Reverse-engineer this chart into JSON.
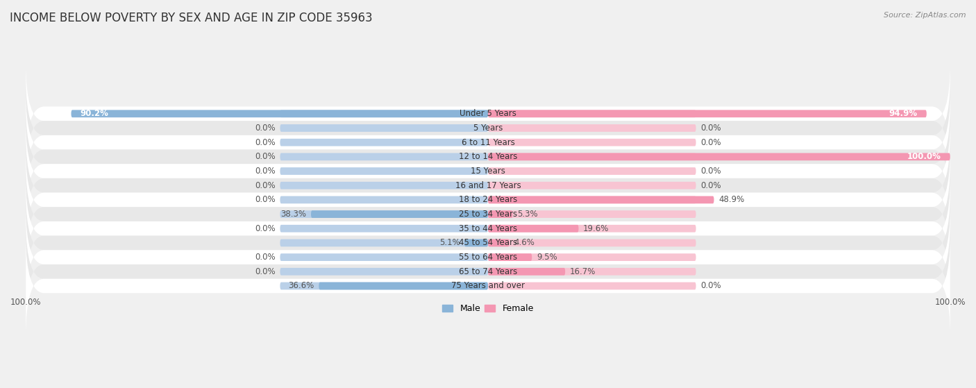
{
  "title": "INCOME BELOW POVERTY BY SEX AND AGE IN ZIP CODE 35963",
  "source": "Source: ZipAtlas.com",
  "categories": [
    "Under 5 Years",
    "5 Years",
    "6 to 11 Years",
    "12 to 14 Years",
    "15 Years",
    "16 and 17 Years",
    "18 to 24 Years",
    "25 to 34 Years",
    "35 to 44 Years",
    "45 to 54 Years",
    "55 to 64 Years",
    "65 to 74 Years",
    "75 Years and over"
  ],
  "male_values": [
    90.2,
    0.0,
    0.0,
    0.0,
    0.0,
    0.0,
    0.0,
    38.3,
    0.0,
    5.1,
    0.0,
    0.0,
    36.6
  ],
  "female_values": [
    94.9,
    0.0,
    0.0,
    100.0,
    0.0,
    0.0,
    48.9,
    5.3,
    19.6,
    4.6,
    9.5,
    16.7,
    0.0
  ],
  "male_color": "#8ab4d8",
  "female_color": "#f497b2",
  "male_color_dim": "#bad0e8",
  "female_color_dim": "#f8c4d2",
  "title_fontsize": 12,
  "label_fontsize": 8.5,
  "axis_label_fontsize": 8.5,
  "category_fontsize": 8.5,
  "bar_height": 0.52,
  "background_color": "#f0f0f0",
  "row_even_color": "#ffffff",
  "row_odd_color": "#e8e8e8",
  "xlim": 100
}
